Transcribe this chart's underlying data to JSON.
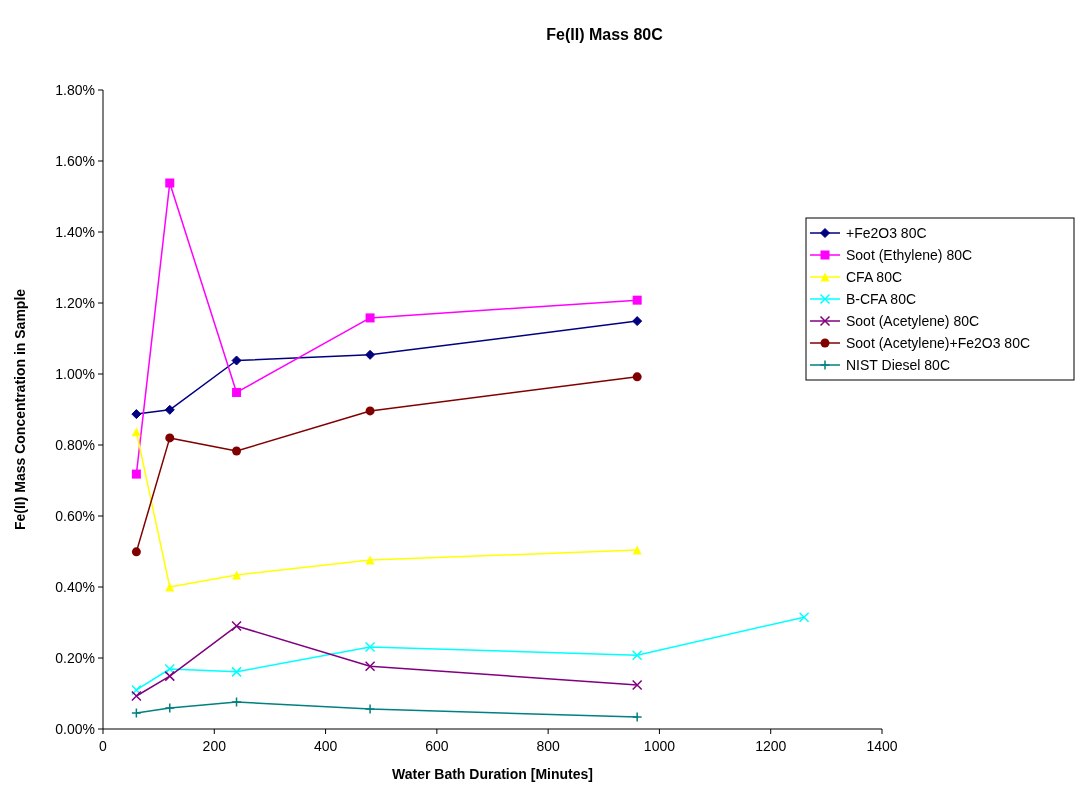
{
  "chart_data": {
    "type": "line",
    "title": "Fe(II) Mass 80C",
    "xlabel": "Water Bath Duration [Minutes]",
    "ylabel": "Fe(II) Mass Concentration in Sample",
    "xlim": [
      0,
      1400
    ],
    "xticks": [
      0,
      200,
      400,
      600,
      800,
      1000,
      1200,
      1400
    ],
    "ylim": [
      0,
      1.8
    ],
    "yticks": [
      {
        "value": 0,
        "label": "0.00%"
      },
      {
        "value": 0.2,
        "label": "0.20%"
      },
      {
        "value": 0.4,
        "label": "0.40%"
      },
      {
        "value": 0.6,
        "label": "0.60%"
      },
      {
        "value": 0.8,
        "label": "0.80%"
      },
      {
        "value": 1.0,
        "label": "1.00%"
      },
      {
        "value": 1.2,
        "label": "1.20%"
      },
      {
        "value": 1.4,
        "label": "1.40%"
      },
      {
        "value": 1.6,
        "label": "1.60%"
      },
      {
        "value": 1.8,
        "label": "1.80%"
      }
    ],
    "grid": false,
    "legend": "right",
    "series": [
      {
        "name": "+Fe2O3 80C",
        "color": "#000080",
        "marker": "diamond",
        "x": [
          60,
          120,
          240,
          480,
          960
        ],
        "values": [
          0.887,
          0.899,
          1.038,
          1.054,
          1.149
        ]
      },
      {
        "name": "Soot (Ethylene) 80C",
        "color": "#ff00ff",
        "marker": "square",
        "x": [
          60,
          120,
          240,
          480,
          960
        ],
        "values": [
          0.718,
          1.538,
          0.948,
          1.158,
          1.208
        ]
      },
      {
        "name": "CFA 80C",
        "color": "#ffff00",
        "marker": "triangle",
        "x": [
          60,
          120,
          240,
          480,
          960
        ],
        "values": [
          0.837,
          0.4,
          0.434,
          0.476,
          0.504
        ]
      },
      {
        "name": "B-CFA 80C",
        "color": "#00ffff",
        "marker": "cross",
        "x": [
          60,
          120,
          240,
          480,
          960,
          1260
        ],
        "values": [
          0.11,
          0.169,
          0.161,
          0.231,
          0.208,
          0.315
        ]
      },
      {
        "name": "Soot (Acetylene) 80C",
        "color": "#800080",
        "marker": "cross",
        "x": [
          60,
          120,
          240,
          480,
          960
        ],
        "values": [
          0.093,
          0.149,
          0.29,
          0.177,
          0.124
        ]
      },
      {
        "name": "Soot (Acetylene)+Fe2O3 80C",
        "color": "#800000",
        "marker": "circle",
        "x": [
          60,
          120,
          240,
          480,
          960
        ],
        "values": [
          0.499,
          0.82,
          0.783,
          0.896,
          0.992
        ]
      },
      {
        "name": "NIST Diesel 80C",
        "color": "#008080",
        "marker": "plus",
        "x": [
          60,
          120,
          240,
          480,
          960
        ],
        "values": [
          0.045,
          0.059,
          0.076,
          0.056,
          0.034
        ]
      }
    ]
  }
}
